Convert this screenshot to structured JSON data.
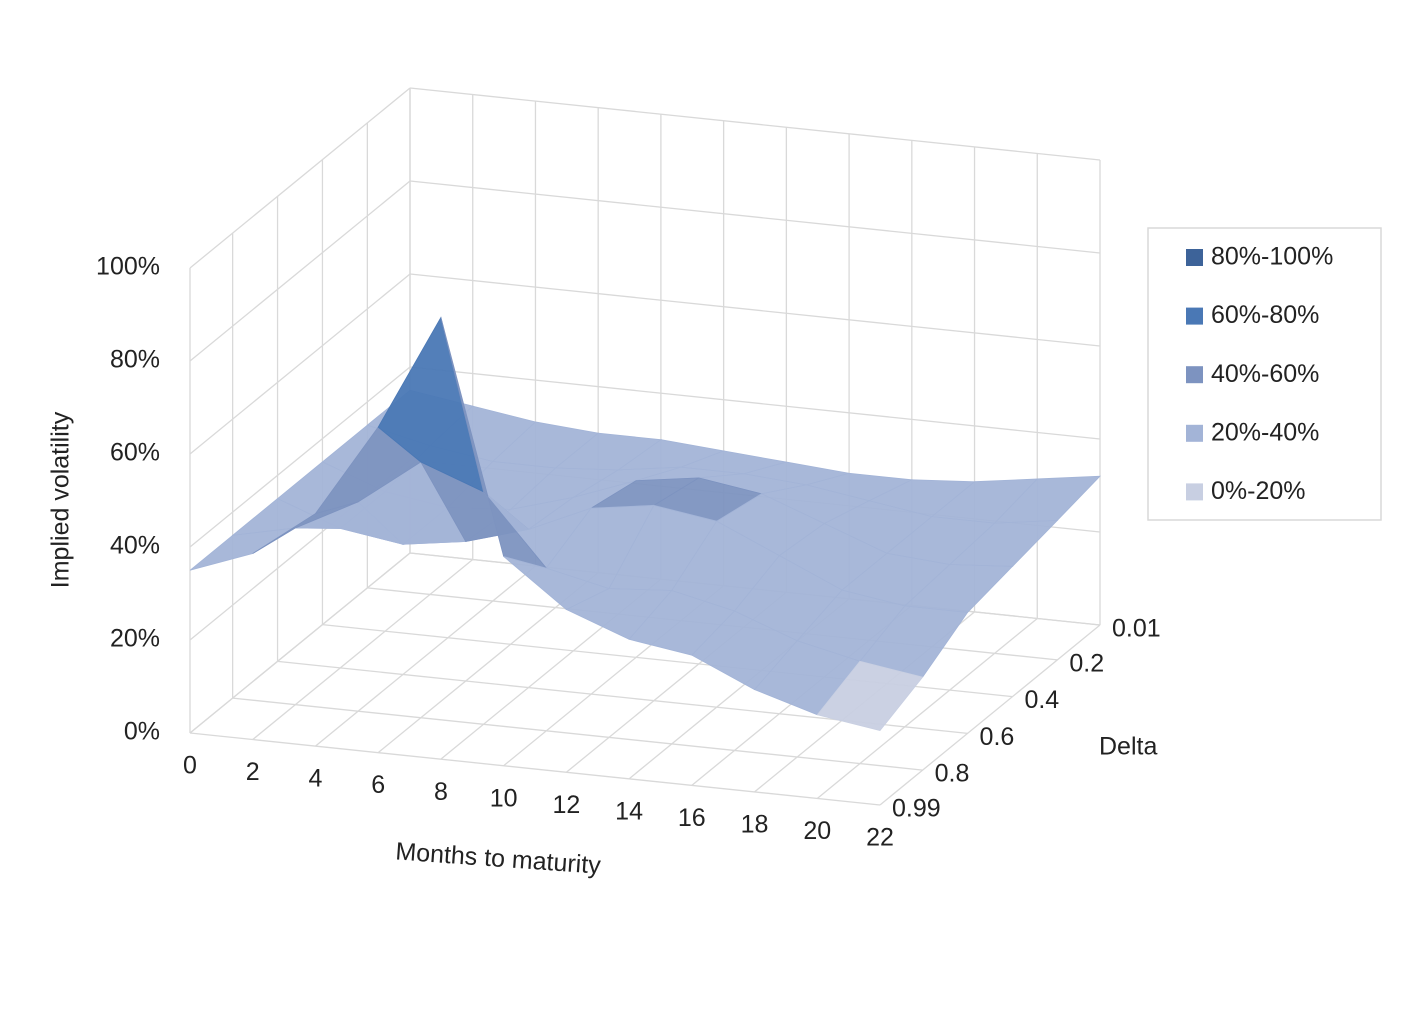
{
  "chart_data": {
    "type": "surface",
    "y_axis_label": "Implied volatility",
    "x_axis_label": "Months to maturity",
    "depth_axis_label": "Delta",
    "x": [
      0,
      2,
      4,
      6,
      8,
      10,
      12,
      14,
      16,
      18,
      20,
      22
    ],
    "xlim": [
      0,
      22
    ],
    "xticks": [
      0,
      2,
      4,
      6,
      8,
      10,
      12,
      14,
      16,
      18,
      20,
      22
    ],
    "depth": [
      0.01,
      0.2,
      0.4,
      0.6,
      0.8,
      0.99
    ],
    "z": [
      [
        35,
        33,
        31,
        30,
        30,
        29,
        28,
        27,
        27,
        28,
        30,
        32
      ],
      [
        35,
        32,
        30,
        30,
        31,
        33,
        33,
        32,
        30,
        28,
        28,
        30
      ],
      [
        35,
        30,
        28,
        29,
        33,
        38,
        40,
        38,
        33,
        28,
        27,
        28
      ],
      [
        35,
        30,
        28,
        30,
        34,
        40,
        42,
        40,
        34,
        28,
        26,
        26
      ],
      [
        35,
        38,
        45,
        55,
        50,
        35,
        32,
        33,
        30,
        25,
        22,
        20
      ],
      [
        35,
        40,
        50,
        70,
        95,
        45,
        35,
        30,
        28,
        22,
        18,
        16
      ]
    ],
    "zlim": [
      0,
      100
    ],
    "zticks": [
      {
        "value": 0,
        "label": "0%"
      },
      {
        "value": 20,
        "label": "20%"
      },
      {
        "value": 40,
        "label": "40%"
      },
      {
        "value": 60,
        "label": "60%"
      },
      {
        "value": 80,
        "label": "80%"
      },
      {
        "value": 100,
        "label": "100%"
      }
    ],
    "grid": true,
    "legend_position": "right",
    "legend": [
      {
        "name": "80%-100%",
        "color": "#3d6399"
      },
      {
        "name": "60%-80%",
        "color": "#4a78b5"
      },
      {
        "name": "40%-60%",
        "color": "#7d93c0"
      },
      {
        "name": "20%-40%",
        "color": "#a3b4d7"
      },
      {
        "name": "0%-20%",
        "color": "#c8cfe2"
      }
    ]
  }
}
